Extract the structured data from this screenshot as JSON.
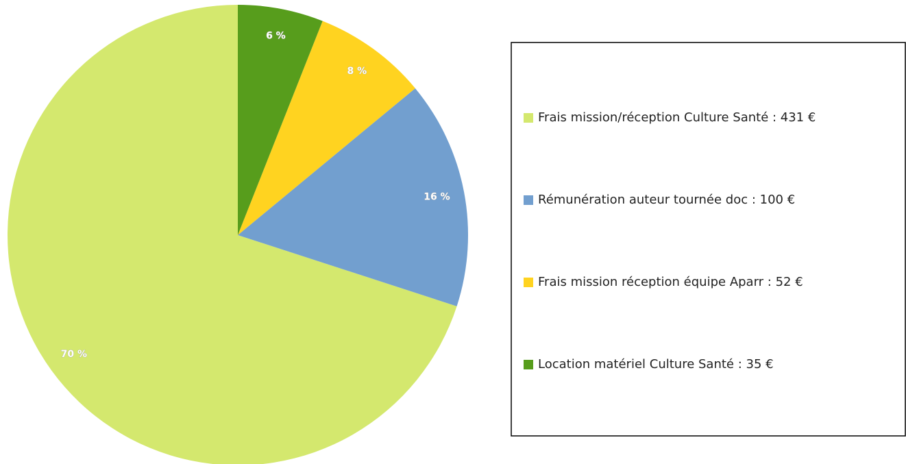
{
  "chart_data": {
    "type": "pie",
    "categories": [
      "Frais mission/réception Culture Santé : 431 €",
      "Rémunération auteur tournée doc : 100 €",
      "Frais mission réception équipe Aparr : 52 €",
      "Location matériel Culture Santé : 35 €"
    ],
    "values": [
      70,
      16,
      8,
      6
    ],
    "value_labels": [
      "70 %",
      "16 %",
      "8 %",
      "6 %"
    ],
    "colors": [
      "#d4e86e",
      "#729fcf",
      "#ffd320",
      "#579d1c"
    ],
    "legend": "right"
  }
}
